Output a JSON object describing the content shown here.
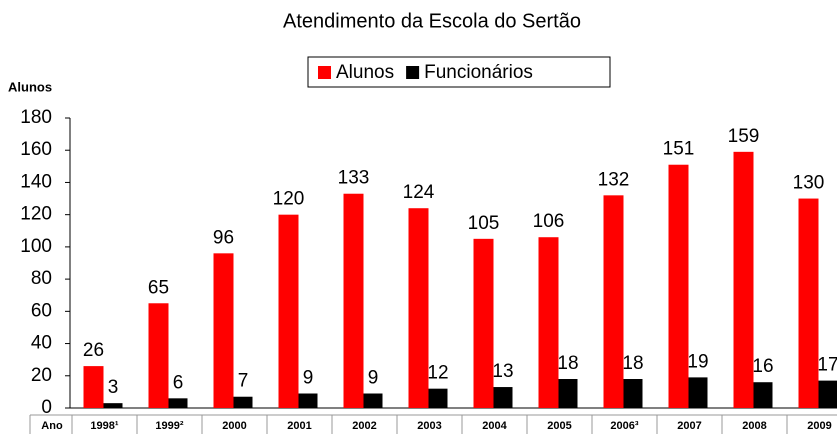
{
  "chart_data": {
    "type": "bar",
    "title": "Atendimento da Escola do Sertão",
    "y_label": "Alunos",
    "x_label": "Ano",
    "categories": [
      "1998¹",
      "1999²",
      "2000",
      "2001",
      "2002",
      "2003",
      "2004",
      "2005",
      "2006³",
      "2007",
      "2008",
      "2009"
    ],
    "series": [
      {
        "name": "Alunos",
        "color": "#ff0000",
        "values": [
          26,
          65,
          96,
          120,
          133,
          124,
          105,
          106,
          132,
          151,
          159,
          130
        ]
      },
      {
        "name": "Funcionários",
        "color": "#000000",
        "values": [
          3,
          6,
          7,
          9,
          9,
          12,
          13,
          18,
          18,
          19,
          16,
          17
        ]
      }
    ],
    "ylim": [
      0,
      180
    ],
    "yticks": [
      0,
      20,
      40,
      60,
      80,
      100,
      120,
      140,
      160,
      180
    ],
    "legend": "top"
  }
}
